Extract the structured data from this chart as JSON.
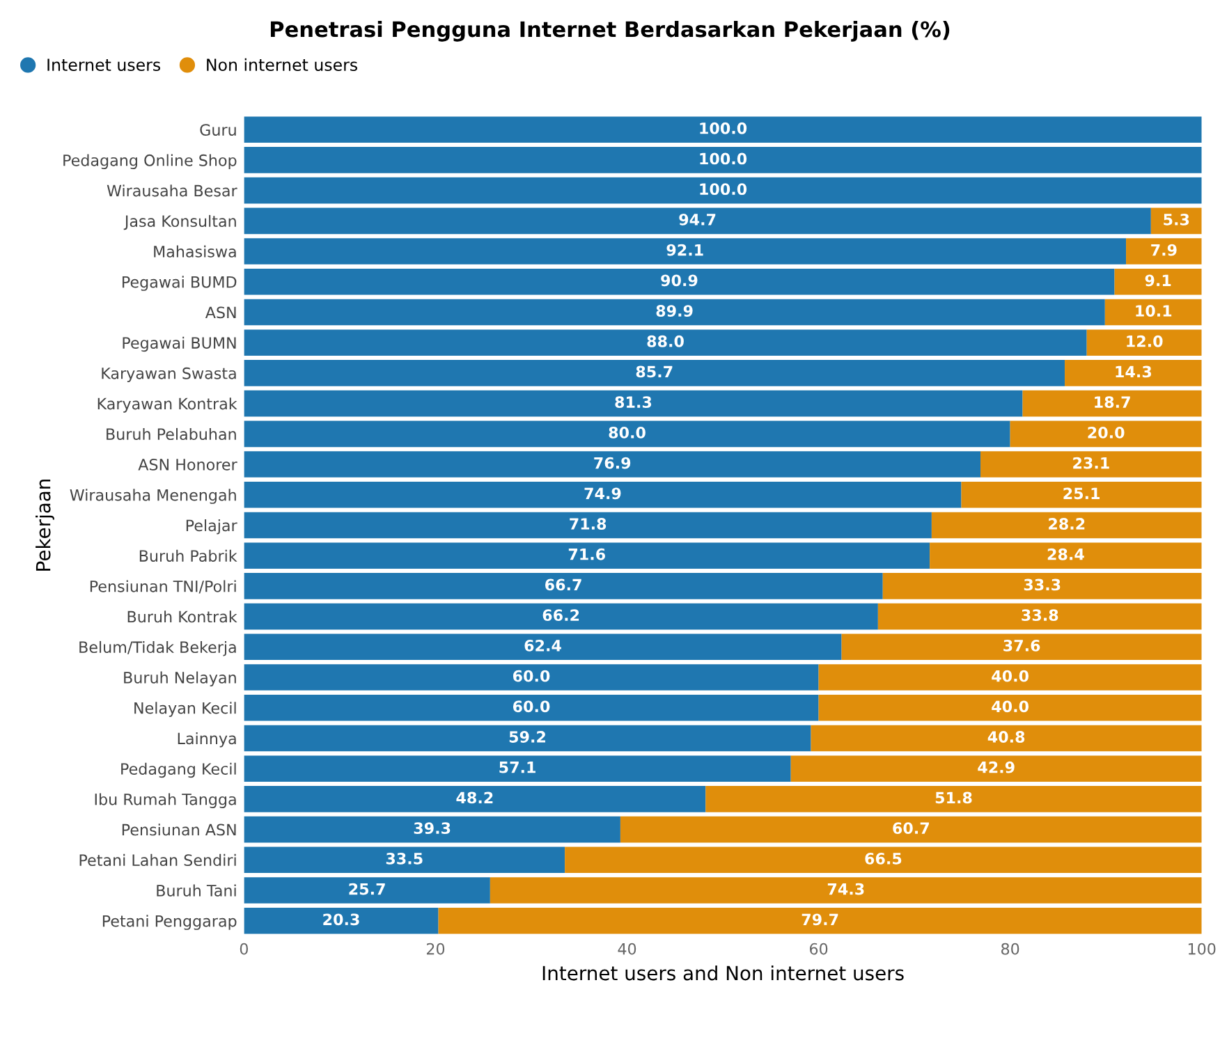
{
  "chart_data": {
    "type": "bar",
    "orientation": "horizontal",
    "stacked": true,
    "title": "Penetrasi Pengguna Internet Berdasarkan Pekerjaan (%)",
    "xlabel": "Internet users and Non internet users",
    "ylabel": "Pekerjaan",
    "categories": [
      "Guru",
      "Pedagang Online Shop",
      "Wirausaha Besar",
      "Jasa Konsultan",
      "Mahasiswa",
      "Pegawai BUMD",
      "ASN",
      "Pegawai BUMN",
      "Karyawan Swasta",
      "Karyawan Kontrak",
      "Buruh Pelabuhan",
      "ASN Honorer",
      "Wirausaha Menengah",
      "Pelajar",
      "Buruh Pabrik",
      "Pensiunan TNI/Polri",
      "Buruh Kontrak",
      "Belum/Tidak Bekerja",
      "Buruh Nelayan",
      "Nelayan Kecil",
      "Lainnya",
      "Pedagang Kecil",
      "Ibu Rumah Tangga",
      "Pensiunan ASN",
      "Petani Lahan Sendiri",
      "Buruh Tani",
      "Petani Penggarap"
    ],
    "series": [
      {
        "name": "Internet users",
        "color": "#1f77b0",
        "values": [
          100.0,
          100.0,
          100.0,
          94.7,
          92.1,
          90.9,
          89.9,
          88.0,
          85.7,
          81.3,
          80.0,
          76.9,
          74.9,
          71.8,
          71.6,
          66.7,
          66.2,
          62.4,
          60.0,
          60.0,
          59.2,
          57.1,
          48.2,
          39.3,
          33.5,
          25.7,
          20.3
        ],
        "value_labels": [
          "100.0",
          "100.0",
          "100.0",
          "94.7",
          "92.1",
          "90.9",
          "89.9",
          "88.0",
          "85.7",
          "81.3",
          "80.0",
          "76.9",
          "74.9",
          "71.8",
          "71.6",
          "66.7",
          "66.2",
          "62.4",
          "60.0",
          "60.0",
          "59.2",
          "57.1",
          "48.2",
          "39.3",
          "33.5",
          "25.7",
          "20.3"
        ]
      },
      {
        "name": "Non internet users",
        "color": "#e08e0b",
        "values": [
          0,
          0,
          0,
          5.3,
          7.9,
          9.1,
          10.1,
          12.0,
          14.3,
          18.7,
          20.0,
          23.1,
          25.1,
          28.2,
          28.4,
          33.3,
          33.8,
          37.6,
          40.0,
          40.0,
          40.8,
          42.9,
          51.8,
          60.7,
          66.5,
          74.3,
          79.7
        ],
        "value_labels": [
          null,
          null,
          null,
          "5.3",
          "7.9",
          "9.1",
          "10.1",
          "12.0",
          "14.3",
          "18.7",
          "20.0",
          "23.1",
          "25.1",
          "28.2",
          "28.4",
          "33.3",
          "33.8",
          "37.6",
          "40.0",
          "40.0",
          "40.8",
          "42.9",
          "51.8",
          "60.7",
          "66.5",
          "74.3",
          "79.7"
        ]
      }
    ],
    "xlim": [
      0,
      100
    ],
    "xticks": [
      0,
      20,
      40,
      60,
      80,
      100
    ],
    "legend": "top left",
    "marker": "circle",
    "grid": false
  }
}
